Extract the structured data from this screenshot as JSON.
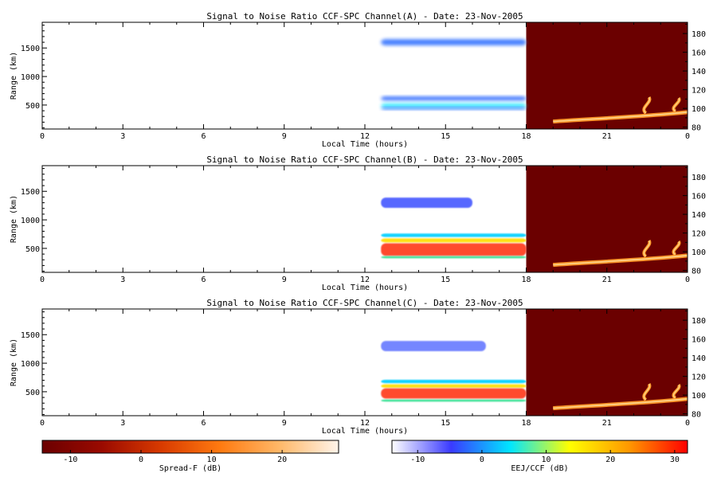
{
  "chart_data": {
    "type": "heatmap",
    "panels": [
      {
        "title": "Signal to Noise Ratio CCF-SPC Channel(A) - Date: 23-Nov-2005",
        "xlabel": "Local Time (hours)",
        "ylabel": "Range (km)",
        "x_ticks": [
          "0",
          "3",
          "6",
          "9",
          "12",
          "15",
          "18",
          "21",
          "0"
        ],
        "y_ticks": [
          "500",
          "1000",
          "1500"
        ],
        "right_y_ticks": [
          "80",
          "100",
          "120",
          "140",
          "160",
          "180"
        ],
        "xlim": [
          0,
          24
        ],
        "ylim": [
          80,
          1950
        ],
        "right_ylim": [
          78,
          192
        ],
        "ccf_echoes": [
          {
            "t_start": 12.6,
            "t_end": 18.0,
            "range_center": 1600,
            "range_half": 55,
            "color": "#3a78ff"
          },
          {
            "t_start": 12.6,
            "t_end": 18.0,
            "range_center": 615,
            "range_half": 35,
            "color": "#2f6bff"
          },
          {
            "t_start": 12.6,
            "t_end": 18.0,
            "range_center": 490,
            "range_half": 40,
            "color": "#33e6ff"
          },
          {
            "t_start": 12.6,
            "t_end": 18.0,
            "range_center": 440,
            "range_half": 20,
            "color": "#3a78ff"
          }
        ],
        "eej_echoes": [
          {
            "t_start": 19.0,
            "t_end": 24.0,
            "alt_start": 86,
            "alt_end": 96
          },
          {
            "t_start": 22.2,
            "t_end": 22.7,
            "alt_start": 95,
            "alt_end": 112
          },
          {
            "t_start": 23.3,
            "t_end": 23.8,
            "alt_start": 97,
            "alt_end": 111
          }
        ]
      },
      {
        "title": "Signal to Noise Ratio CCF-SPC Channel(B) - Date: 23-Nov-2005",
        "xlabel": "Local Time (hours)",
        "ylabel": "Range (km)",
        "x_ticks": [
          "0",
          "3",
          "6",
          "9",
          "12",
          "15",
          "18",
          "21",
          "0"
        ],
        "y_ticks": [
          "500",
          "1000",
          "1500"
        ],
        "right_y_ticks": [
          "80",
          "100",
          "120",
          "140",
          "160",
          "180"
        ],
        "xlim": [
          0,
          24
        ],
        "ylim": [
          80,
          1950
        ],
        "right_ylim": [
          78,
          192
        ],
        "ccf_echoes": [
          {
            "t_start": 12.6,
            "t_end": 16.0,
            "range_center": 1300,
            "range_half": 90,
            "color": "#4a5cff"
          },
          {
            "t_start": 12.6,
            "t_end": 18.0,
            "range_center": 730,
            "range_half": 30,
            "color": "#00cfff"
          },
          {
            "t_start": 12.6,
            "t_end": 18.0,
            "range_center": 640,
            "range_half": 35,
            "color": "#ffdd00"
          },
          {
            "t_start": 12.6,
            "t_end": 18.0,
            "range_center": 480,
            "range_half": 110,
            "color": "#ff3b1f"
          },
          {
            "t_start": 12.6,
            "t_end": 18.0,
            "range_center": 345,
            "range_half": 18,
            "color": "#22dd88"
          }
        ],
        "eej_echoes": [
          {
            "t_start": 19.0,
            "t_end": 24.0,
            "alt_start": 86,
            "alt_end": 96
          },
          {
            "t_start": 22.2,
            "t_end": 22.7,
            "alt_start": 95,
            "alt_end": 112
          },
          {
            "t_start": 23.3,
            "t_end": 23.8,
            "alt_start": 97,
            "alt_end": 111
          }
        ]
      },
      {
        "title": "Signal to Noise Ratio CCF-SPC Channel(C) - Date: 23-Nov-2005",
        "xlabel": "Local Time (hours)",
        "ylabel": "Range (km)",
        "x_ticks": [
          "0",
          "3",
          "6",
          "9",
          "12",
          "15",
          "18",
          "21",
          "0"
        ],
        "y_ticks": [
          "500",
          "1000",
          "1500"
        ],
        "right_y_ticks": [
          "80",
          "100",
          "120",
          "140",
          "160",
          "180"
        ],
        "xlim": [
          0,
          24
        ],
        "ylim": [
          80,
          1950
        ],
        "right_ylim": [
          78,
          192
        ],
        "ccf_echoes": [
          {
            "t_start": 12.6,
            "t_end": 16.5,
            "range_center": 1300,
            "range_half": 90,
            "color": "#6a7cff"
          },
          {
            "t_start": 12.6,
            "t_end": 18.0,
            "range_center": 680,
            "range_half": 30,
            "color": "#00cfff"
          },
          {
            "t_start": 12.6,
            "t_end": 18.0,
            "range_center": 600,
            "range_half": 30,
            "color": "#ffdd00"
          },
          {
            "t_start": 12.6,
            "t_end": 18.0,
            "range_center": 470,
            "range_half": 90,
            "color": "#ff3b1f"
          },
          {
            "t_start": 12.6,
            "t_end": 18.0,
            "range_center": 345,
            "range_half": 18,
            "color": "#22dd88"
          }
        ],
        "eej_echoes": [
          {
            "t_start": 19.0,
            "t_end": 24.0,
            "alt_start": 86,
            "alt_end": 96
          },
          {
            "t_start": 22.2,
            "t_end": 22.7,
            "alt_start": 95,
            "alt_end": 112
          },
          {
            "t_start": 23.3,
            "t_end": 23.8,
            "alt_start": 97,
            "alt_end": 111
          }
        ]
      }
    ],
    "colorbars": [
      {
        "label": "Spread-F (dB)",
        "ticks": [
          "-10",
          "0",
          "10",
          "20"
        ],
        "tick_values": [
          -10,
          0,
          10,
          20
        ],
        "range": [
          -14,
          28
        ],
        "colors": [
          "#6b0000",
          "#9a0a00",
          "#d83a00",
          "#ff7a10",
          "#ffb868",
          "#fff4ea"
        ]
      },
      {
        "label": "EEJ/CCF (dB)",
        "ticks": [
          "-10",
          "0",
          "10",
          "20",
          "30"
        ],
        "tick_values": [
          -10,
          0,
          10,
          20,
          30
        ],
        "range": [
          -14,
          32
        ],
        "colors": [
          "#ffffff",
          "#3a3aff",
          "#00e6ff",
          "#ffff00",
          "#ff9900",
          "#ff0000"
        ]
      }
    ],
    "colors": {
      "eej_background": "#6b0000",
      "eej_echo": "#ff9a2a",
      "eej_echo_core": "#ffd890"
    }
  }
}
